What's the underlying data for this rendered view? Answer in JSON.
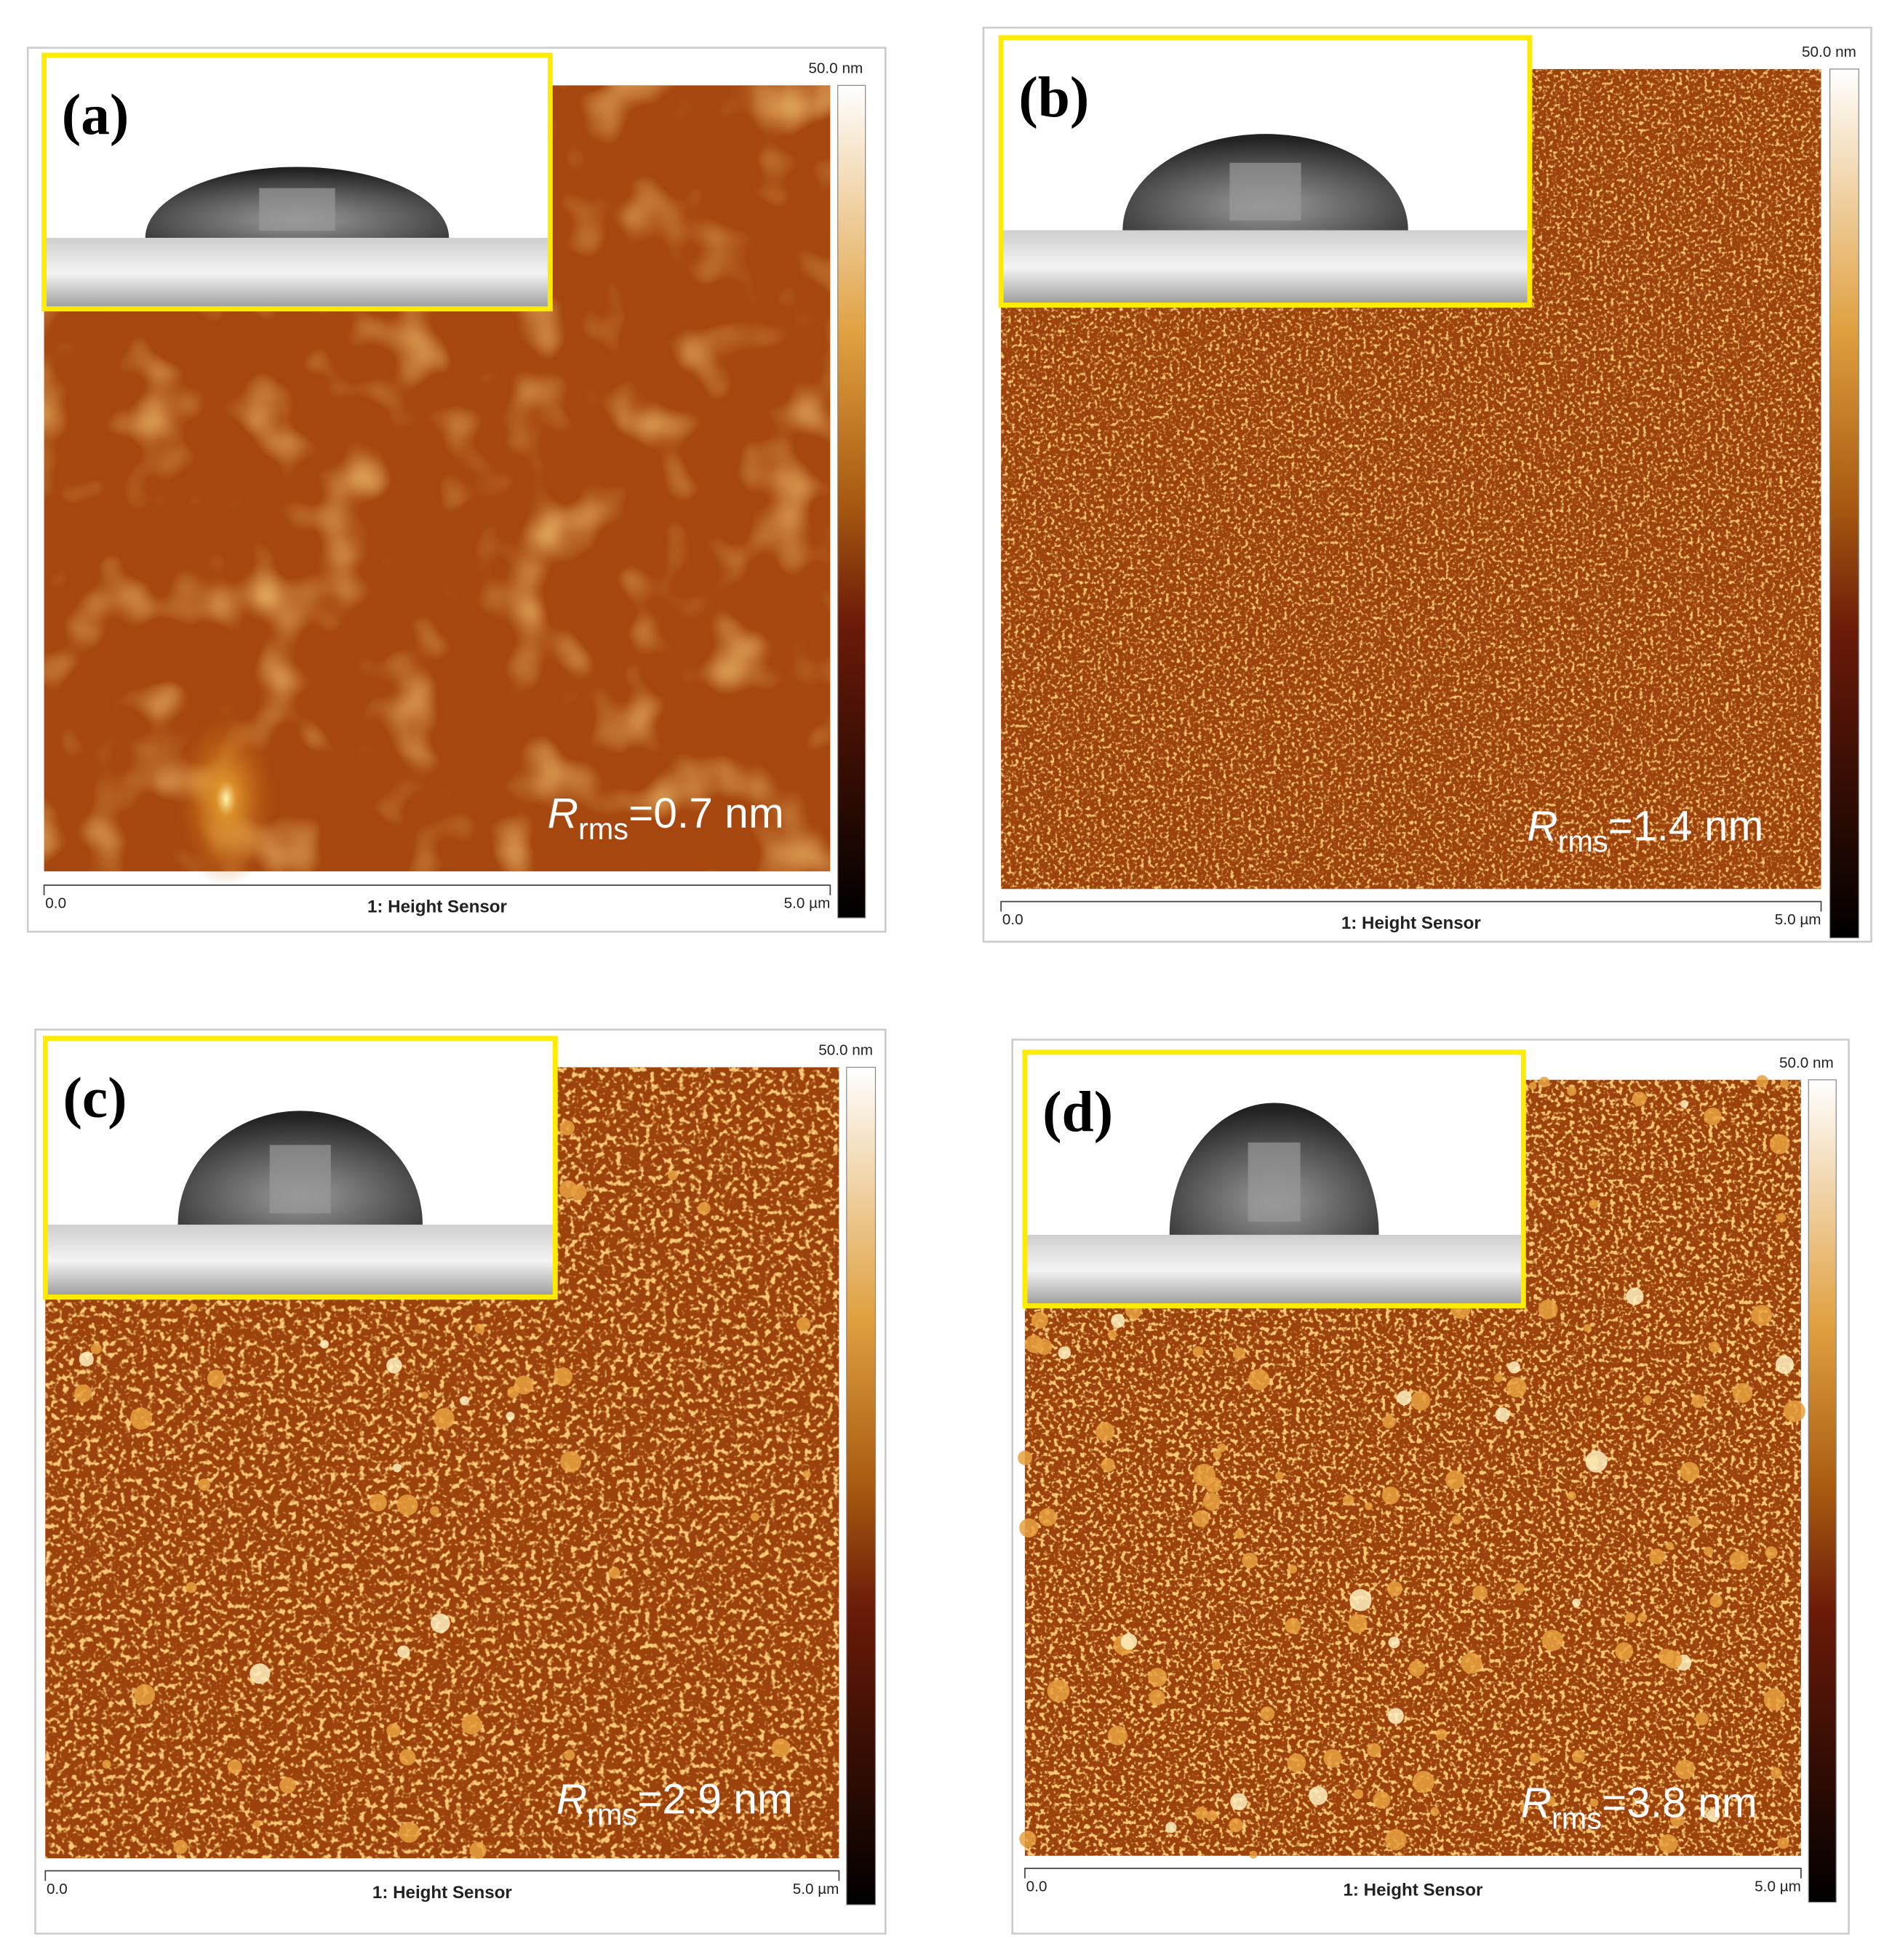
{
  "panels": [
    {
      "label": "(a)",
      "colorbar_max": "50.0 nm",
      "x_start": "0.0",
      "channel": "1: Height Sensor",
      "x_end": "5.0 µm",
      "roughness": {
        "symbol": "R",
        "subscript": "rms",
        "value": "=0.7 nm"
      }
    },
    {
      "label": "(b)",
      "colorbar_max": "50.0 nm",
      "x_start": "0.0",
      "channel": "1: Height Sensor",
      "x_end": "5.0 µm",
      "roughness": {
        "symbol": "R",
        "subscript": "rms",
        "value": "=1.4 nm"
      }
    },
    {
      "label": "(c)",
      "colorbar_max": "50.0 nm",
      "x_start": "0.0",
      "channel": "1: Height Sensor",
      "x_end": "5.0 µm",
      "roughness": {
        "symbol": "R",
        "subscript": "rms",
        "value": "=2.9 nm"
      }
    },
    {
      "label": "(d)",
      "colorbar_max": "50.0 nm",
      "x_start": "0.0",
      "channel": "1: Height Sensor",
      "x_end": "5.0 µm",
      "roughness": {
        "symbol": "R",
        "subscript": "rms",
        "value": "=3.8 nm"
      }
    }
  ]
}
